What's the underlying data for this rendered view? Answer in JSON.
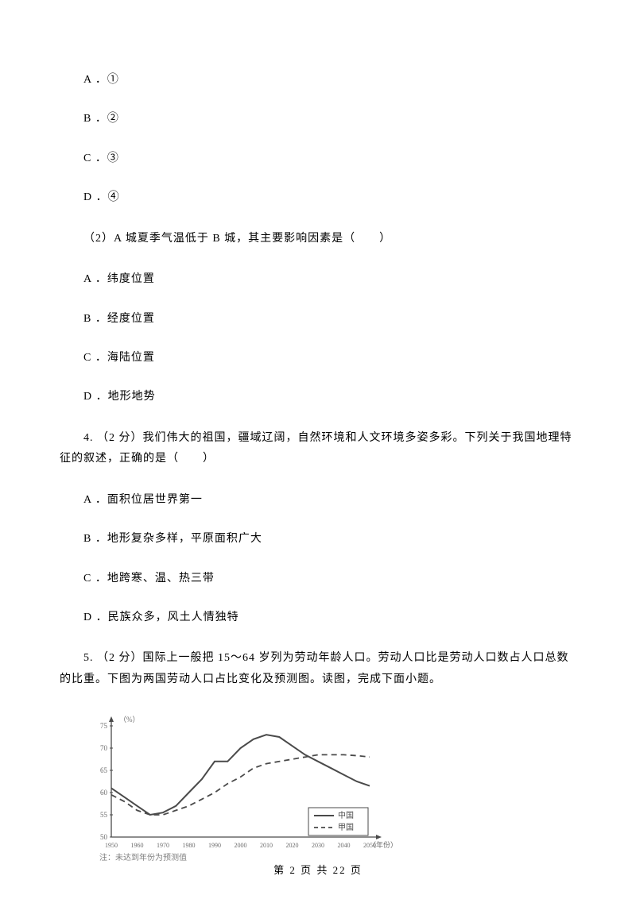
{
  "options_q_prev": [
    "A ．①",
    "B ．②",
    "C ．③",
    "D ．④"
  ],
  "q2": {
    "text": "（2）A 城夏季气温低于 B 城，其主要影响因素是（　　）",
    "options": [
      "A ．纬度位置",
      "B ．经度位置",
      "C ．海陆位置",
      "D ．地形地势"
    ]
  },
  "q4": {
    "text": "4. （2 分）我们伟大的祖国，疆域辽阔，自然环境和人文环境多姿多彩。下列关于我国地理特征的叙述，正确的是（　　）",
    "options": [
      "A ．面积位居世界第一",
      "B ．地形复杂多样，平原面积广大",
      "C ．地跨寒、温、热三带",
      "D ．民族众多，风土人情独特"
    ]
  },
  "q5": {
    "text": "5. （2 分）国际上一般把 15～64 岁列为劳动年龄人口。劳动人口比是劳动人口数占人口总数的比重。下图为两国劳动人口占比变化及预测图。读图，完成下面小题。"
  },
  "chart": {
    "y_axis_label": "（%）",
    "y_ticks": [
      50,
      55,
      60,
      65,
      70,
      75
    ],
    "x_axis_label": "（年份）",
    "x_ticks": [
      1950,
      1960,
      1970,
      1980,
      1990,
      2000,
      2010,
      2020,
      2030,
      2040,
      2050
    ],
    "note": "注：未达到年份为预测值",
    "legend": [
      {
        "label": "中国",
        "type": "solid"
      },
      {
        "label": "甲国",
        "type": "dashed"
      }
    ],
    "china_series": [
      {
        "x": 1950,
        "y": 61
      },
      {
        "x": 1955,
        "y": 59
      },
      {
        "x": 1960,
        "y": 57
      },
      {
        "x": 1965,
        "y": 55
      },
      {
        "x": 1970,
        "y": 55.5
      },
      {
        "x": 1975,
        "y": 57
      },
      {
        "x": 1980,
        "y": 60
      },
      {
        "x": 1985,
        "y": 63
      },
      {
        "x": 1990,
        "y": 67
      },
      {
        "x": 1995,
        "y": 67
      },
      {
        "x": 2000,
        "y": 70
      },
      {
        "x": 2005,
        "y": 72
      },
      {
        "x": 2010,
        "y": 73
      },
      {
        "x": 2015,
        "y": 72.5
      },
      {
        "x": 2020,
        "y": 70.5
      },
      {
        "x": 2025,
        "y": 68.5
      },
      {
        "x": 2030,
        "y": 67
      },
      {
        "x": 2035,
        "y": 65.5
      },
      {
        "x": 2040,
        "y": 64
      },
      {
        "x": 2045,
        "y": 62.5
      },
      {
        "x": 2050,
        "y": 61.5
      }
    ],
    "jia_series": [
      {
        "x": 1950,
        "y": 59.5
      },
      {
        "x": 1955,
        "y": 58
      },
      {
        "x": 1960,
        "y": 56
      },
      {
        "x": 1965,
        "y": 55
      },
      {
        "x": 1970,
        "y": 55
      },
      {
        "x": 1975,
        "y": 56
      },
      {
        "x": 1980,
        "y": 57
      },
      {
        "x": 1985,
        "y": 58.5
      },
      {
        "x": 1990,
        "y": 60
      },
      {
        "x": 1995,
        "y": 62
      },
      {
        "x": 2000,
        "y": 63.5
      },
      {
        "x": 2005,
        "y": 65.5
      },
      {
        "x": 2010,
        "y": 66.5
      },
      {
        "x": 2015,
        "y": 67
      },
      {
        "x": 2020,
        "y": 67.5
      },
      {
        "x": 2025,
        "y": 68
      },
      {
        "x": 2030,
        "y": 68.5
      },
      {
        "x": 2035,
        "y": 68.5
      },
      {
        "x": 2040,
        "y": 68.5
      },
      {
        "x": 2045,
        "y": 68.3
      },
      {
        "x": 2050,
        "y": 68
      }
    ],
    "colors": {
      "line": "#4a4a4a",
      "text": "#6b6b6b",
      "note": "#808080"
    }
  },
  "footer": "第 2 页 共 22 页"
}
